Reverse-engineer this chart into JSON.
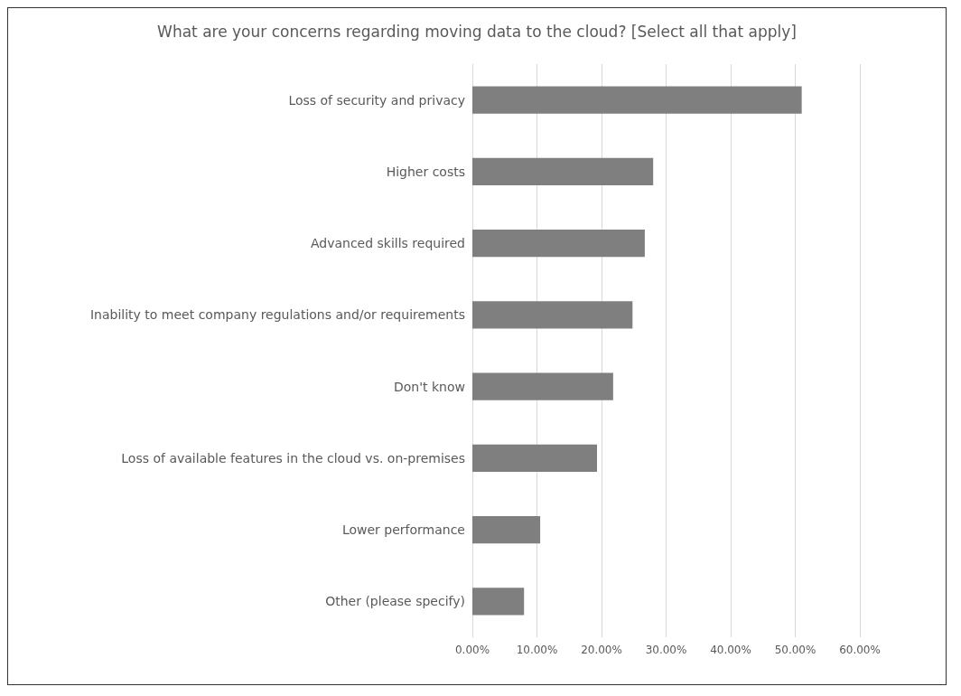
{
  "chart_data": {
    "type": "bar",
    "orientation": "horizontal",
    "title": "What are your concerns regarding moving data to the cloud? [Select all that apply]",
    "categories": [
      "Loss of security and privacy",
      "Higher costs",
      "Advanced skills required",
      "Inability to meet company regulations and/or requirements",
      "Don't know",
      "Loss of available features in the cloud vs. on-premises",
      "Lower performance",
      "Other (please specify)"
    ],
    "values": [
      51.0,
      28.0,
      26.7,
      24.8,
      21.8,
      19.3,
      10.5,
      8.0
    ],
    "color": "#7f7f7f",
    "xlim": [
      0,
      60
    ],
    "xticks": [
      {
        "value": 0,
        "label": "0.00%"
      },
      {
        "value": 10,
        "label": "10.00%"
      },
      {
        "value": 20,
        "label": "20.00%"
      },
      {
        "value": 30,
        "label": "30.00%"
      },
      {
        "value": 40,
        "label": "40.00%"
      },
      {
        "value": 50,
        "label": "50.00%"
      },
      {
        "value": 60,
        "label": "60.00%"
      }
    ],
    "grid": "x"
  }
}
